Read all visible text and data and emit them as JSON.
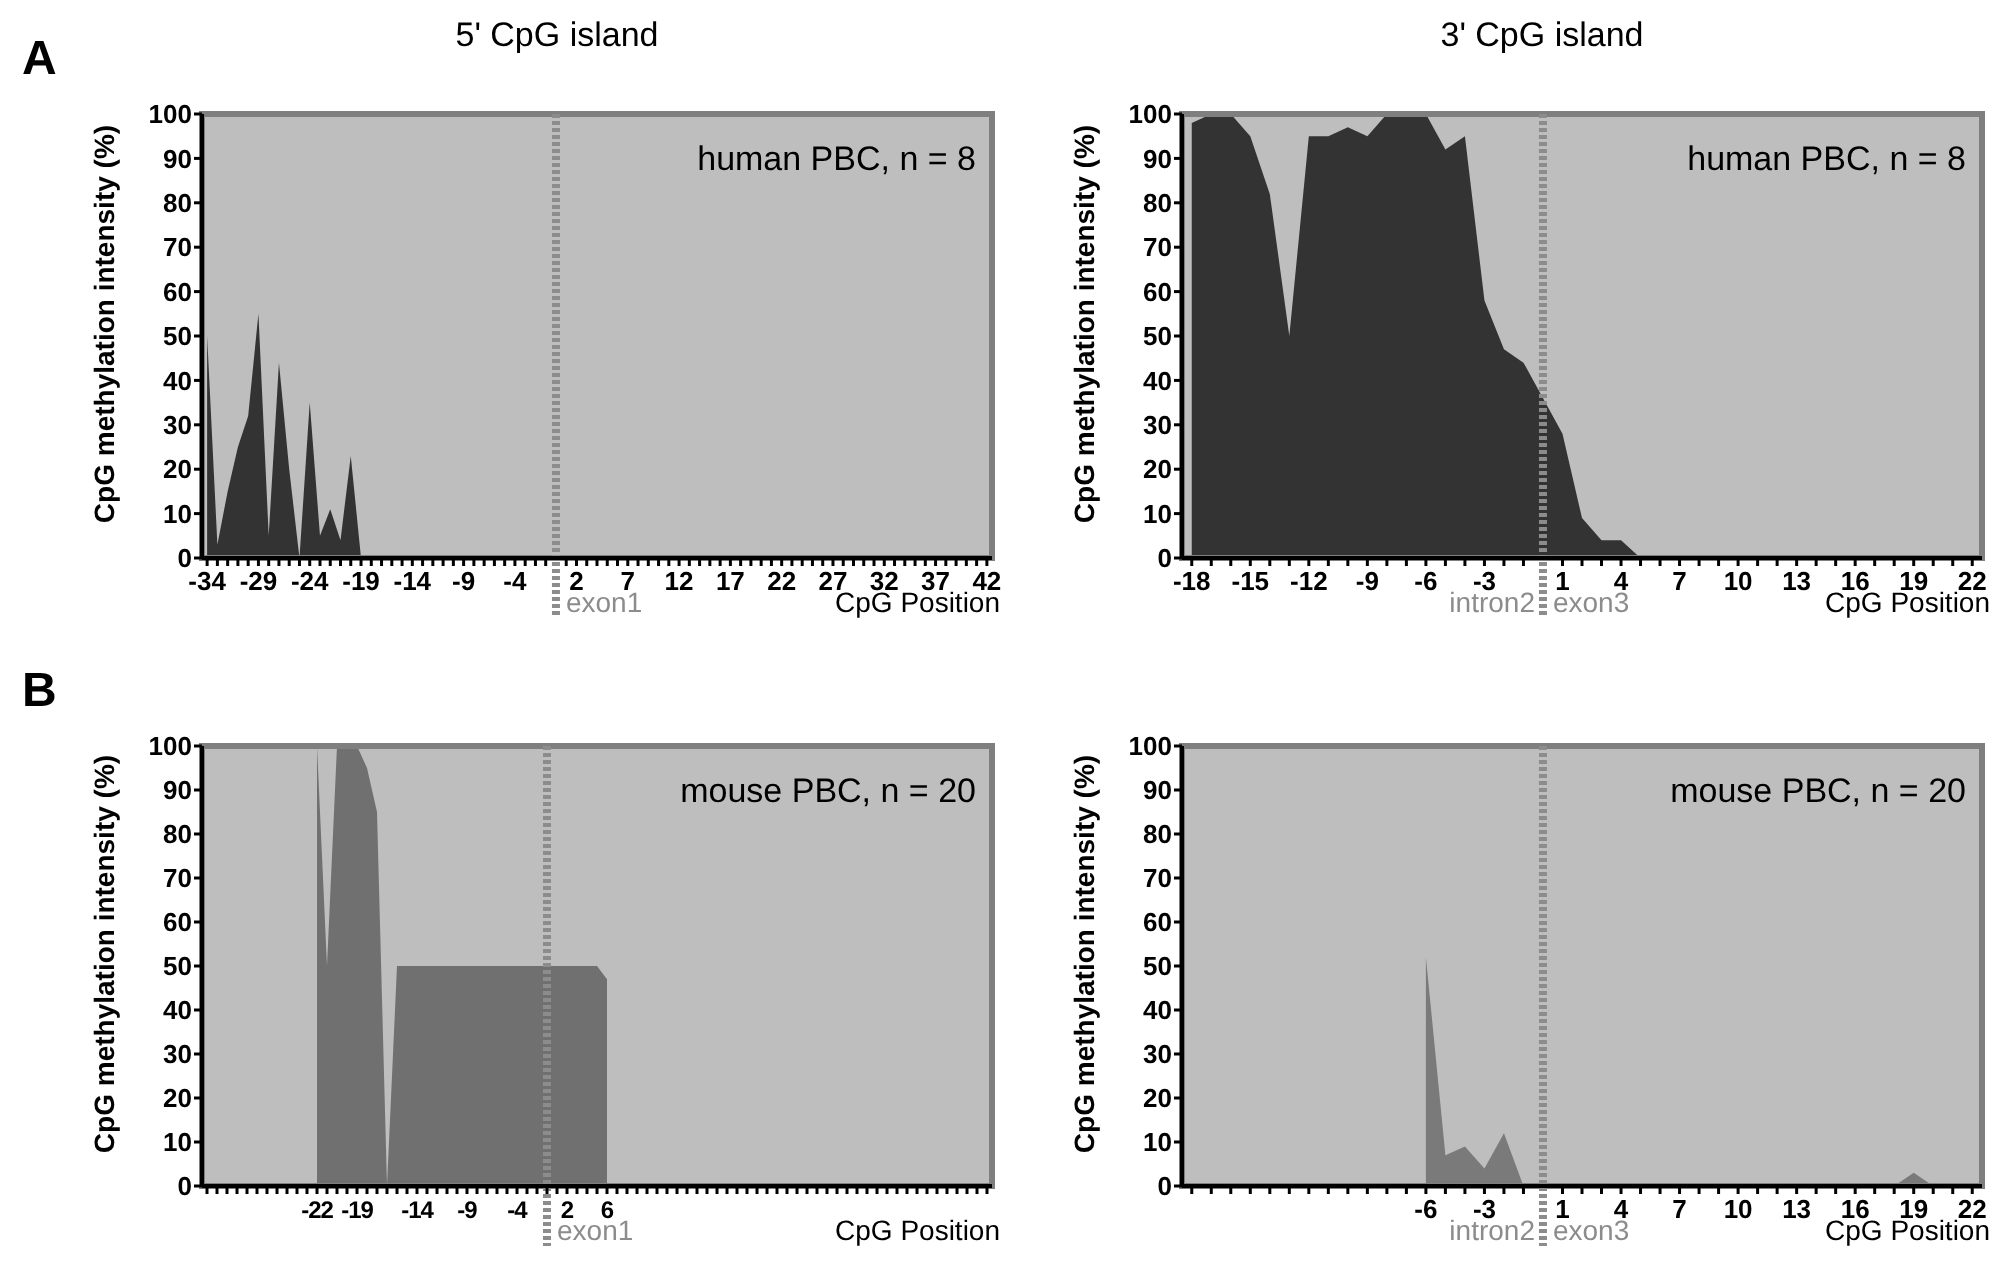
{
  "chart_data": [
    {
      "type": "area",
      "title": "5' CpG island",
      "xlabel": "CpG Position",
      "ylabel": "CpG methylation intensity (%)",
      "annotations": [
        "human PBC, n = 8",
        "A"
      ],
      "grid": false,
      "series": [
        {
          "color": "#333333",
          "x": [
            -34,
            -33,
            -32,
            -31,
            -30,
            -29,
            -28,
            -27,
            -26,
            -25,
            -24,
            -23,
            -22,
            -21,
            -20,
            -19
          ],
          "values": [
            50,
            3,
            15,
            25,
            32,
            55,
            5,
            44,
            20,
            0,
            35,
            5,
            11,
            4,
            23,
            0
          ]
        }
      ],
      "xlim": [
        -34.5,
        42.5
      ],
      "ylim": [
        0,
        100
      ],
      "yticks": [
        0,
        10,
        20,
        30,
        40,
        50,
        60,
        70,
        80,
        90,
        100
      ],
      "xticks": [
        -34,
        {
          "value": -33,
          "label": null
        },
        {
          "value": -32,
          "label": null
        },
        {
          "value": -31,
          "label": null
        },
        {
          "value": -30,
          "label": null
        },
        -29,
        {
          "value": -28,
          "label": null
        },
        {
          "value": -27,
          "label": null
        },
        {
          "value": -26,
          "label": null
        },
        {
          "value": -25,
          "label": null
        },
        -24,
        {
          "value": -23,
          "label": null
        },
        {
          "value": -22,
          "label": null
        },
        {
          "value": -21,
          "label": null
        },
        {
          "value": -20,
          "label": null
        },
        -19,
        {
          "value": -18,
          "label": null
        },
        {
          "value": -17,
          "label": null
        },
        {
          "value": -16,
          "label": null
        },
        {
          "value": -15,
          "label": null
        },
        -14,
        {
          "value": -13,
          "label": null
        },
        {
          "value": -12,
          "label": null
        },
        {
          "value": -11,
          "label": null
        },
        {
          "value": -10,
          "label": null
        },
        -9,
        {
          "value": -8,
          "label": null
        },
        {
          "value": -7,
          "label": null
        },
        {
          "value": -6,
          "label": null
        },
        {
          "value": -5,
          "label": null
        },
        -4,
        {
          "value": -3,
          "label": null
        },
        {
          "value": -2,
          "label": null
        },
        {
          "value": -1,
          "label": null
        },
        {
          "value": 1,
          "label": null
        },
        2,
        {
          "value": 3,
          "label": null
        },
        {
          "value": 4,
          "label": null
        },
        {
          "value": 5,
          "label": null
        },
        {
          "value": 6,
          "label": null
        },
        7,
        {
          "value": 8,
          "label": null
        },
        {
          "value": 9,
          "label": null
        },
        {
          "value": 10,
          "label": null
        },
        {
          "value": 11,
          "label": null
        },
        12,
        {
          "value": 13,
          "label": null
        },
        {
          "value": 14,
          "label": null
        },
        {
          "value": 15,
          "label": null
        },
        {
          "value": 16,
          "label": null
        },
        17,
        {
          "value": 18,
          "label": null
        },
        {
          "value": 19,
          "label": null
        },
        {
          "value": 20,
          "label": null
        },
        {
          "value": 21,
          "label": null
        },
        22,
        {
          "value": 23,
          "label": null
        },
        {
          "value": 24,
          "label": null
        },
        {
          "value": 25,
          "label": null
        },
        {
          "value": 26,
          "label": null
        },
        27,
        {
          "value": 28,
          "label": null
        },
        {
          "value": 29,
          "label": null
        },
        {
          "value": 30,
          "label": null
        },
        {
          "value": 31,
          "label": null
        },
        32,
        {
          "value": 33,
          "label": null
        },
        {
          "value": 34,
          "label": null
        },
        {
          "value": 35,
          "label": null
        },
        {
          "value": 36,
          "label": null
        },
        37,
        {
          "value": 38,
          "label": null
        },
        {
          "value": 39,
          "label": null
        },
        {
          "value": 40,
          "label": null
        },
        {
          "value": 41,
          "label": null
        },
        42
      ],
      "ref_lines": [
        {
          "axis": "x",
          "value": 0,
          "label": "exon1",
          "color": "#8c8c8c",
          "line_style": "dotted"
        }
      ]
    },
    {
      "type": "area",
      "title": "3' CpG island",
      "xlabel": "CpG Position",
      "ylabel": "CpG methylation intensity (%)",
      "annotations": [
        "human PBC, n = 8",
        "intron2"
      ],
      "grid": false,
      "series": [
        {
          "color": "#333333",
          "x": [
            -18,
            -17,
            -16,
            -15,
            -14,
            -13,
            -12,
            -11,
            -10,
            -9,
            -8,
            -7,
            -6,
            -5,
            -4,
            -3,
            -2,
            -1,
            1,
            2,
            3,
            4,
            5
          ],
          "values": [
            98,
            100,
            100,
            95,
            82,
            50,
            95,
            95,
            97,
            95,
            100,
            100,
            100,
            92,
            95,
            58,
            47,
            44,
            28,
            9,
            4,
            4,
            0
          ]
        }
      ],
      "xlim": [
        -18.5,
        22.5
      ],
      "ylim": [
        0,
        100
      ],
      "yticks": [
        0,
        10,
        20,
        30,
        40,
        50,
        60,
        70,
        80,
        90,
        100
      ],
      "xticks": [
        -18,
        {
          "value": -17,
          "label": null
        },
        {
          "value": -16,
          "label": null
        },
        -15,
        {
          "value": -14,
          "label": null
        },
        {
          "value": -13,
          "label": null
        },
        -12,
        {
          "value": -11,
          "label": null
        },
        {
          "value": -10,
          "label": null
        },
        -9,
        {
          "value": -8,
          "label": null
        },
        {
          "value": -7,
          "label": null
        },
        -6,
        {
          "value": -5,
          "label": null
        },
        {
          "value": -4,
          "label": null
        },
        -3,
        {
          "value": -2,
          "label": null
        },
        {
          "value": -1,
          "label": null
        },
        1,
        {
          "value": 2,
          "label": null
        },
        {
          "value": 3,
          "label": null
        },
        4,
        {
          "value": 5,
          "label": null
        },
        {
          "value": 6,
          "label": null
        },
        7,
        {
          "value": 8,
          "label": null
        },
        {
          "value": 9,
          "label": null
        },
        10,
        {
          "value": 11,
          "label": null
        },
        {
          "value": 12,
          "label": null
        },
        13,
        {
          "value": 14,
          "label": null
        },
        {
          "value": 15,
          "label": null
        },
        16,
        {
          "value": 17,
          "label": null
        },
        {
          "value": 18,
          "label": null
        },
        19,
        {
          "value": 20,
          "label": null
        },
        {
          "value": 21,
          "label": null
        },
        22
      ],
      "ref_lines": [
        {
          "axis": "x",
          "value": 0,
          "label": "exon3",
          "color": "#8c8c8c",
          "line_style": "dotted"
        }
      ]
    },
    {
      "type": "area",
      "xlabel": "CpG Position",
      "ylabel": "CpG methylation intensity (%)",
      "annotations": [
        "mouse PBC, n = 20",
        "B",
        "exon1"
      ],
      "categories": [
        null,
        null,
        null,
        null,
        null,
        null,
        null,
        null,
        null,
        null,
        null,
        "-22",
        null,
        null,
        null,
        "-19",
        null,
        null,
        null,
        null,
        null,
        "-14",
        null,
        null,
        null,
        null,
        "-9",
        null,
        null,
        null,
        null,
        "-4",
        null,
        null,
        null,
        null,
        "2",
        null,
        null,
        null,
        "6",
        null,
        null,
        null,
        null,
        null,
        null,
        null,
        null,
        null,
        null,
        null,
        null,
        null,
        null,
        null,
        null,
        null,
        null,
        null,
        null,
        null,
        null,
        null,
        null,
        null,
        null,
        null,
        null,
        null,
        null,
        null,
        null,
        null,
        null,
        null,
        null,
        null,
        null
      ],
      "series": [
        {
          "color": "#707070",
          "values": [
            null,
            null,
            null,
            null,
            null,
            null,
            null,
            null,
            null,
            null,
            null,
            100,
            50,
            100,
            100,
            100,
            95,
            85,
            0,
            50,
            50,
            50,
            50,
            50,
            50,
            50,
            50,
            50,
            50,
            50,
            50,
            50,
            50,
            50,
            50,
            50,
            50,
            50,
            50,
            50,
            47,
            null,
            null,
            null,
            null,
            null,
            null,
            null,
            null,
            null,
            null,
            null,
            null,
            null,
            null,
            null,
            null,
            null,
            null,
            null,
            null,
            null,
            null,
            null,
            null,
            null,
            null,
            null,
            null,
            null,
            null,
            null,
            null,
            null,
            null,
            null,
            null,
            null,
            null
          ]
        }
      ],
      "ylim": [
        0,
        100
      ],
      "yticks": [
        0,
        10,
        20,
        30,
        40,
        50,
        60,
        70,
        80,
        90,
        100
      ]
    },
    {
      "type": "area",
      "xlabel": "CpG Position",
      "ylabel": "CpG methylation intensity (%)",
      "annotations": [
        "mouse PBC, n = 20",
        "intron2"
      ],
      "grid": false,
      "series": [
        {
          "color": "#7a7a7a",
          "x": [
            -6,
            -5,
            -4,
            -3,
            -2,
            -1,
            1,
            2,
            3,
            4,
            5,
            6,
            7,
            8,
            9,
            10,
            11,
            12,
            13,
            14,
            15,
            16,
            17,
            18,
            19,
            20,
            21,
            22
          ],
          "values": [
            52,
            7,
            9,
            4,
            12,
            0,
            0,
            0,
            0,
            0,
            0,
            0,
            0,
            0,
            0,
            0,
            0,
            0,
            0,
            0,
            0,
            0,
            0,
            0,
            3,
            0,
            0,
            0
          ]
        }
      ],
      "xlim": [
        -18.5,
        22.5
      ],
      "ylim": [
        0,
        100
      ],
      "yticks": [
        0,
        10,
        20,
        30,
        40,
        50,
        60,
        70,
        80,
        90,
        100
      ],
      "xticks": [
        {
          "value": -18,
          "label": null
        },
        {
          "value": -17,
          "label": null
        },
        {
          "value": -16,
          "label": null
        },
        {
          "value": -15,
          "label": null
        },
        {
          "value": -14,
          "label": null
        },
        {
          "value": -13,
          "label": null
        },
        {
          "value": -12,
          "label": null
        },
        {
          "value": -11,
          "label": null
        },
        {
          "value": -10,
          "label": null
        },
        {
          "value": -9,
          "label": null
        },
        {
          "value": -8,
          "label": null
        },
        {
          "value": -7,
          "label": null
        },
        -6,
        {
          "value": -5,
          "label": null
        },
        {
          "value": -4,
          "label": null
        },
        -3,
        {
          "value": -2,
          "label": null
        },
        {
          "value": -1,
          "label": null
        },
        1,
        {
          "value": 2,
          "label": null
        },
        {
          "value": 3,
          "label": null
        },
        4,
        {
          "value": 5,
          "label": null
        },
        {
          "value": 6,
          "label": null
        },
        7,
        {
          "value": 8,
          "label": null
        },
        {
          "value": 9,
          "label": null
        },
        10,
        {
          "value": 11,
          "label": null
        },
        {
          "value": 12,
          "label": null
        },
        13,
        {
          "value": 14,
          "label": null
        },
        {
          "value": 15,
          "label": null
        },
        16,
        {
          "value": 17,
          "label": null
        },
        {
          "value": 18,
          "label": null
        },
        19,
        {
          "value": 20,
          "label": null
        },
        {
          "value": 21,
          "label": null
        },
        22
      ],
      "ref_lines": [
        {
          "axis": "x",
          "value": 0,
          "label": "exon3",
          "color": "#8c8c8c",
          "line_style": "dotted"
        }
      ]
    }
  ]
}
